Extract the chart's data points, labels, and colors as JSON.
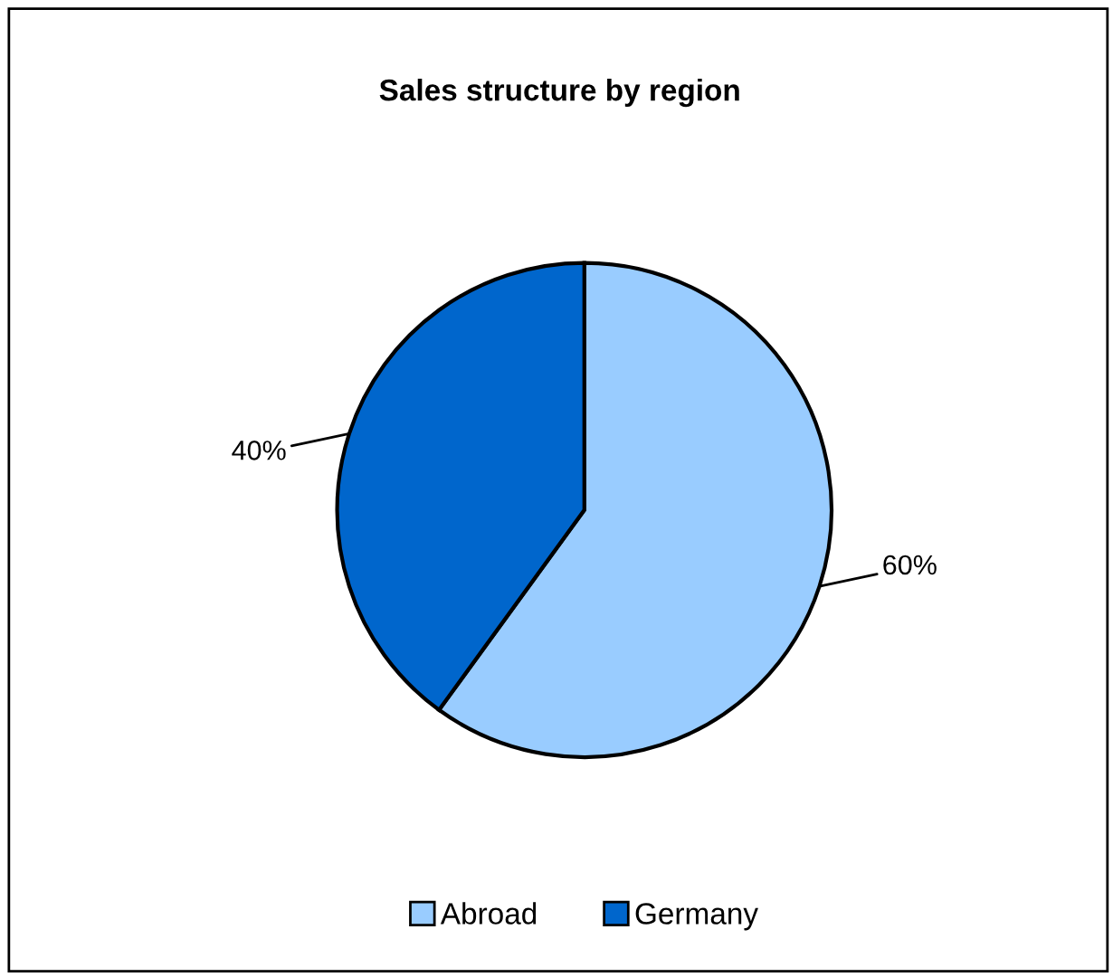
{
  "chart_data": {
    "type": "pie",
    "title": "Sales structure by region",
    "categories": [
      "Abroad",
      "Germany"
    ],
    "values": [
      60,
      40
    ],
    "colors": [
      "#99ccff",
      "#0066cc"
    ],
    "value_labels": [
      "60%",
      "40%"
    ],
    "legend": "bottom"
  }
}
